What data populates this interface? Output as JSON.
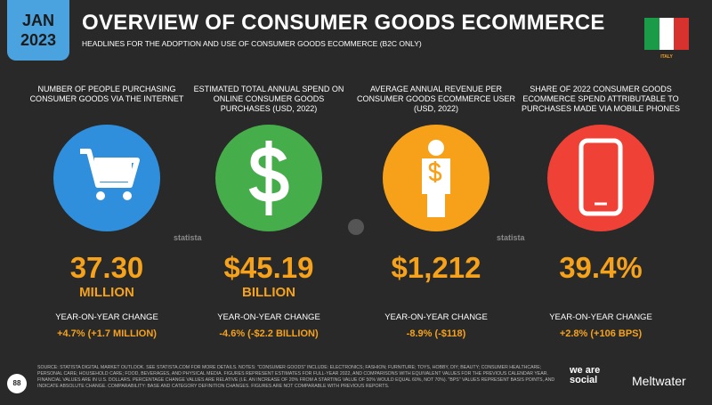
{
  "header": {
    "month": "JAN",
    "year": "2023",
    "title": "OVERVIEW OF CONSUMER GOODS ECOMMERCE",
    "subtitle": "HEADLINES FOR THE ADOPTION AND USE OF CONSUMER GOODS ECOMMERCE (B2C ONLY)",
    "country": "ITALY"
  },
  "columns": [
    {
      "label": "NUMBER OF PEOPLE PURCHASING CONSUMER GOODS VIA THE INTERNET",
      "value": "37.30",
      "unit": "MILLION",
      "change_label": "YEAR-ON-YEAR CHANGE",
      "change": "+4.7% (+1.7 MILLION)"
    },
    {
      "label": "ESTIMATED TOTAL ANNUAL SPEND ON ONLINE CONSUMER GOODS PURCHASES (USD, 2022)",
      "value": "$45.19",
      "unit": "BILLION",
      "change_label": "YEAR-ON-YEAR CHANGE",
      "change": "-4.6% (-$2.2 BILLION)"
    },
    {
      "label": "AVERAGE ANNUAL REVENUE PER CONSUMER GOODS ECOMMERCE USER (USD, 2022)",
      "value": "$1,212",
      "change_label": "YEAR-ON-YEAR CHANGE",
      "change": "-8.9% (-$118)"
    },
    {
      "label": "SHARE OF 2022 CONSUMER GOODS ECOMMERCE SPEND ATTRIBUTABLE TO PURCHASES MADE VIA MOBILE PHONES",
      "value": "39.4%",
      "change_label": "YEAR-ON-YEAR CHANGE",
      "change": "+2.8% (+106 BPS)"
    }
  ],
  "watermarks": [
    "statista",
    "statista"
  ],
  "footer": {
    "page": "88",
    "footnote": "SOURCE: STATISTA DIGITAL MARKET OUTLOOK. SEE STATISTA.COM FOR MORE DETAILS. NOTES: \"CONSUMER GOODS\" INCLUDE: ELECTRONICS; FASHION; FURNITURE; TOYS, HOBBY, DIY; BEAUTY; CONSUMER HEALTHCARE; PERSONAL CARE; HOUSEHOLD CARE; FOOD, BEVERAGES, AND PHYSICAL MEDIA. FIGURES REPRESENT ESTIMATES FOR FULL-YEAR 2022, AND COMPARISONS WITH EQUIVALENT VALUES FOR THE PREVIOUS CALENDAR YEAR. FINANCIAL VALUES ARE IN U.S. DOLLARS. PERCENTAGE CHANGE VALUES ARE RELATIVE (I.E. AN INCREASE OF 20% FROM A STARTING VALUE OF 50% WOULD EQUAL 60%, NOT 70%). \"BPS\" VALUES REPRESENT BASIS POINTS, AND INDICATE ABSOLUTE CHANGE. COMPARABILITY: BASE AND CATEGORY DEFINITION CHANGES. FIGURES ARE NOT COMPARABLE WITH PREVIOUS REPORTS.",
    "brand_1": "we are social",
    "brand_2": "Meltwater"
  }
}
